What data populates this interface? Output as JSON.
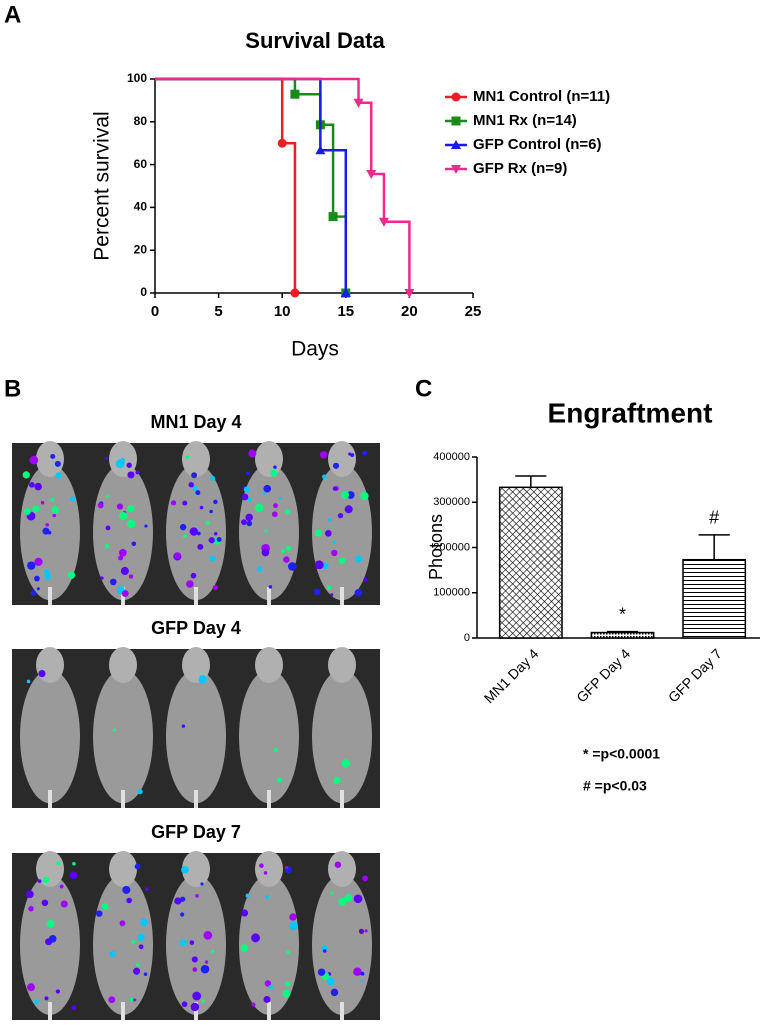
{
  "panel_labels": [
    "A",
    "B",
    "C"
  ],
  "images": [
    {
      "title": "MN1 Day 4"
    },
    {
      "title": "GFP Day 4"
    },
    {
      "title": "GFP Day 7"
    }
  ],
  "chart_data": [
    {
      "type": "line",
      "step": true,
      "title": "Survival Data",
      "xlabel": "Days",
      "ylabel": "Percent survival",
      "xlim": [
        0,
        25
      ],
      "xticks": [
        0,
        5,
        10,
        15,
        20,
        25
      ],
      "ylim": [
        0,
        100
      ],
      "yticks": [
        0,
        20,
        40,
        60,
        80,
        100
      ],
      "legend": "right",
      "series": [
        {
          "name": "MN1 Control (n=11)",
          "color": "#ee1c24",
          "marker": "circle",
          "x": [
            0,
            10,
            11
          ],
          "values": [
            100,
            70,
            0
          ]
        },
        {
          "name": "MN1 Rx (n=14)",
          "color": "#1a8a1a",
          "marker": "square",
          "x": [
            0,
            11,
            13,
            14,
            15
          ],
          "values": [
            100,
            92.9,
            78.6,
            35.7,
            0
          ]
        },
        {
          "name": "GFP Control (n=6)",
          "color": "#1a1aee",
          "marker": "triangle-up",
          "x": [
            0,
            13,
            15
          ],
          "values": [
            100,
            66.7,
            0
          ]
        },
        {
          "name": "GFP Rx (n=9)",
          "color": "#ee2a8c",
          "marker": "triangle-down",
          "x": [
            0,
            16,
            17,
            18,
            20
          ],
          "values": [
            100,
            88.9,
            55.6,
            33.3,
            0
          ]
        }
      ]
    },
    {
      "type": "bar",
      "title": "Engraftment",
      "ylabel": "Photons",
      "categories": [
        "MN1 Day 4",
        "GFP Day 4",
        "GFP Day 7"
      ],
      "values": [
        333000,
        12000,
        173000
      ],
      "errors": [
        25000,
        2000,
        55000
      ],
      "patterns": [
        "crosshatch",
        "dots",
        "hlines"
      ],
      "ylim": [
        0,
        400000
      ],
      "yticks": [
        0,
        100000,
        200000,
        300000,
        400000
      ],
      "annotations": [
        {
          "text": "*",
          "category": "GFP Day 4"
        },
        {
          "text": "#",
          "category": "GFP Day 7"
        }
      ],
      "notes": [
        "* =p<0.0001",
        "# =p<0.03"
      ]
    }
  ]
}
